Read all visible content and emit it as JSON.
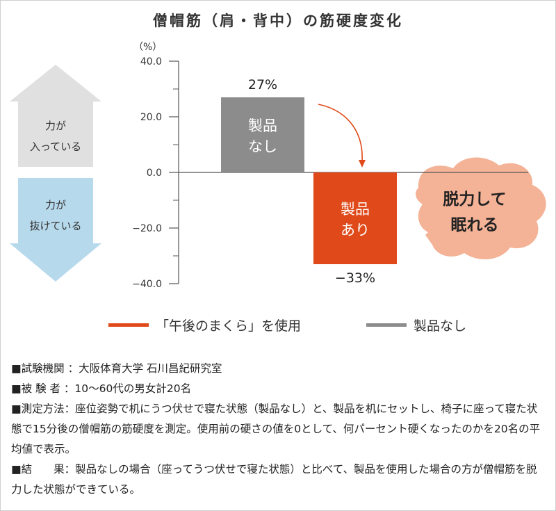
{
  "title": "僧帽筋（肩・背中）の筋硬度変化",
  "unit": "（%）",
  "side_arrows": {
    "up": {
      "line1": "力が",
      "line2": "入っている"
    },
    "down": {
      "line1": "力が",
      "line2": "抜けている"
    }
  },
  "callout": {
    "line1": "脱力して",
    "line2": "眠れる"
  },
  "colors": {
    "product_none": "#8c8c8c",
    "product_with": "#e04a1a",
    "up_arrow": "#e0e0e0",
    "down_arrow": "#b7d9ec",
    "cloud": "#f4b296"
  },
  "chart_data": {
    "type": "bar",
    "title": "僧帽筋（肩・背中）の筋硬度変化",
    "ylabel": "（%）",
    "ylim": [
      -40,
      40
    ],
    "yticks": [
      "40.0",
      "20.0",
      "0.0",
      "−20.0",
      "−40.0"
    ],
    "ytick_values": [
      40,
      20,
      0,
      -20,
      -40
    ],
    "categories": [
      "製品なし",
      "製品あり"
    ],
    "bar_labels": [
      {
        "line1": "製品",
        "line2": "なし"
      },
      {
        "line1": "製品",
        "line2": "あり"
      }
    ],
    "values": [
      27,
      -33
    ],
    "data_labels": [
      "27%",
      "−33%"
    ],
    "legend": [
      {
        "name": "「午後のまくら」を使用",
        "color": "#e04a1a"
      },
      {
        "name": "製品なし",
        "color": "#8c8c8c"
      }
    ],
    "grid": false
  },
  "notes": [
    "■試験機関 ：大阪体育大学 石川昌紀研究室",
    "■被 験 者 ：10〜60代の男女計20名",
    "■測定方法：座位姿勢で机にうつ伏せで寝た状態（製品なし）と、製品を机にセットし、椅子に座って寝た状態で15分後の僧帽筋の筋硬度を測定。使用前の硬さの値を0として、何パーセント硬くなったのかを20名の平均値で表示。",
    "■結　　果：製品なしの場合（座ってうつ伏せで寝た状態）と比べて、製品を使用した場合の方が僧帽筋を脱力した状態ができている。"
  ]
}
